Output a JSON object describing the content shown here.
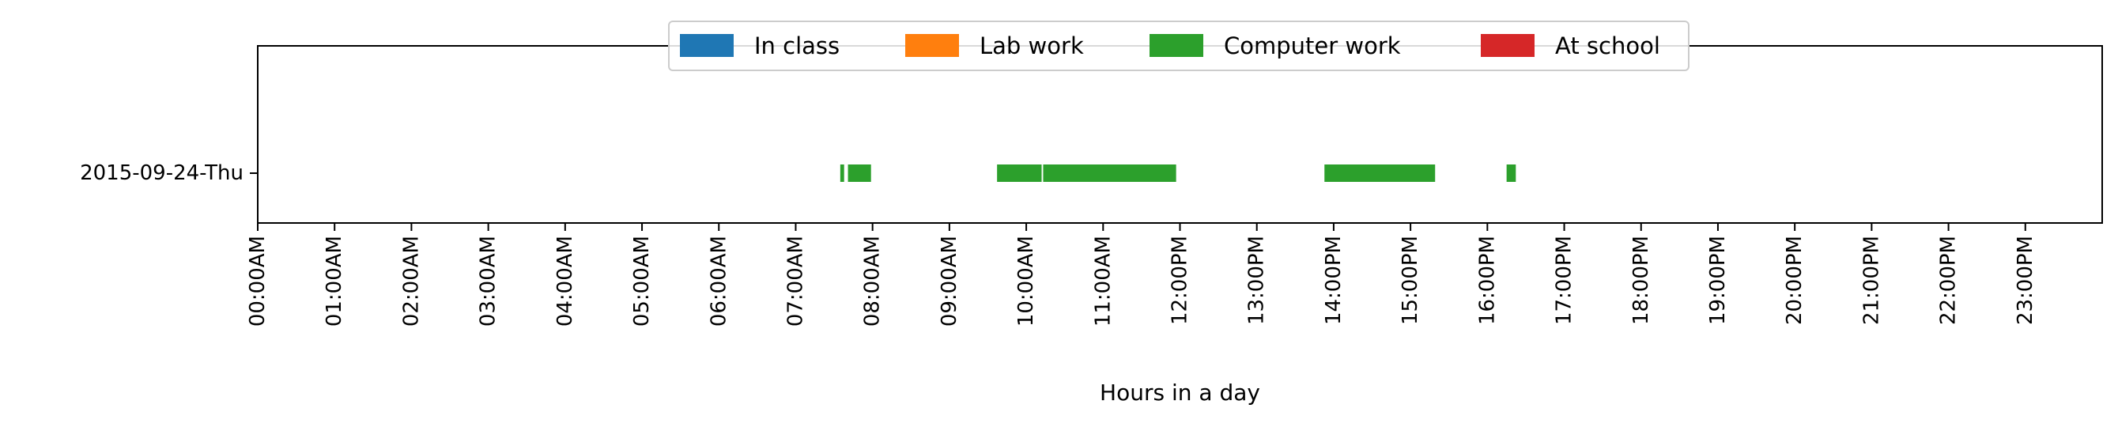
{
  "chart_data": {
    "type": "timeline",
    "title": "",
    "xlabel": "Hours in a day",
    "ylabel": "",
    "xlim": [
      0,
      24
    ],
    "grid": false,
    "legend_placement": "top-center",
    "x_ticks": [
      "00:00AM",
      "01:00AM",
      "02:00AM",
      "03:00AM",
      "04:00AM",
      "05:00AM",
      "06:00AM",
      "07:00AM",
      "08:00AM",
      "09:00AM",
      "10:00AM",
      "11:00AM",
      "12:00PM",
      "13:00PM",
      "14:00PM",
      "15:00PM",
      "16:00PM",
      "17:00PM",
      "18:00PM",
      "19:00PM",
      "20:00PM",
      "21:00PM",
      "22:00PM",
      "23:00PM"
    ],
    "categories": [
      "2015-09-24-Thu"
    ],
    "series": [
      {
        "name": "In class",
        "color": "#1f77b4",
        "segments": []
      },
      {
        "name": "Lab work",
        "color": "#ff7f0e",
        "segments": []
      },
      {
        "name": "Computer work",
        "color": "#2ca02c",
        "segments": [
          {
            "row": "2015-09-24-Thu",
            "start": 7.58,
            "end": 7.63
          },
          {
            "row": "2015-09-24-Thu",
            "start": 7.68,
            "end": 7.98
          },
          {
            "row": "2015-09-24-Thu",
            "start": 9.62,
            "end": 10.2
          },
          {
            "row": "2015-09-24-Thu",
            "start": 10.22,
            "end": 11.95
          },
          {
            "row": "2015-09-24-Thu",
            "start": 13.88,
            "end": 15.32
          },
          {
            "row": "2015-09-24-Thu",
            "start": 16.25,
            "end": 16.37
          }
        ]
      },
      {
        "name": "At school",
        "color": "#d62728",
        "segments": []
      }
    ]
  }
}
